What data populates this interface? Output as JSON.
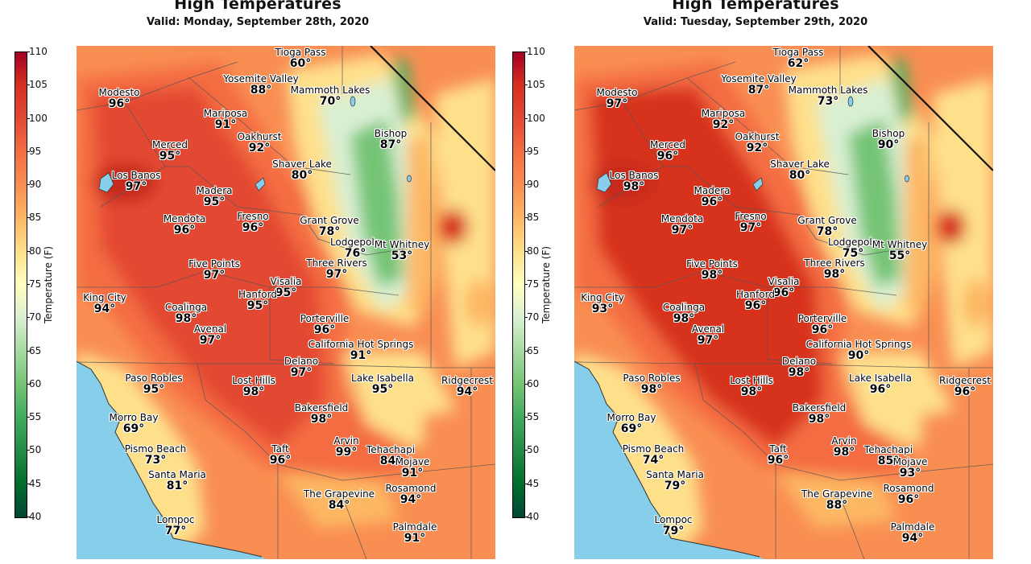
{
  "colorbar": {
    "label": "Temperature (F)",
    "ticks": [
      "110",
      "105",
      "100",
      "95",
      "90",
      "85",
      "80",
      "75",
      "70",
      "65",
      "60",
      "55",
      "50",
      "45",
      "40"
    ],
    "colors": [
      "#a50026",
      "#d7301f",
      "#e34a33",
      "#f46d43",
      "#f98e52",
      "#fdb863",
      "#fee08b",
      "#ffffbf",
      "#d9f0d3",
      "#a6dba0",
      "#74c476",
      "#41ab5d",
      "#238b45",
      "#006d2c",
      "#014636"
    ]
  },
  "panels": [
    {
      "title": "High Temperatures",
      "subtitle": "Valid: Monday, September 28th, 2020",
      "cities": [
        {
          "name": "Tioga Pass",
          "temp": "60°"
        },
        {
          "name": "Yosemite Valley",
          "temp": "88°"
        },
        {
          "name": "Mammoth Lakes",
          "temp": "70°"
        },
        {
          "name": "Modesto",
          "temp": "96°"
        },
        {
          "name": "Mariposa",
          "temp": "91°"
        },
        {
          "name": "Merced",
          "temp": "95°"
        },
        {
          "name": "Oakhurst",
          "temp": "92°"
        },
        {
          "name": "Bishop",
          "temp": "87°"
        },
        {
          "name": "Shaver Lake",
          "temp": "80°"
        },
        {
          "name": "Los Banos",
          "temp": "97°"
        },
        {
          "name": "Madera",
          "temp": "95°"
        },
        {
          "name": "Mendota",
          "temp": "96°"
        },
        {
          "name": "Fresno",
          "temp": "96°"
        },
        {
          "name": "Grant Grove",
          "temp": "78°"
        },
        {
          "name": "Lodgepole",
          "temp": "76°"
        },
        {
          "name": "Mt Whitney",
          "temp": "53°"
        },
        {
          "name": "Five Points",
          "temp": "97°"
        },
        {
          "name": "Three Rivers",
          "temp": "97°"
        },
        {
          "name": "Visalia",
          "temp": "95°"
        },
        {
          "name": "King City",
          "temp": "94°"
        },
        {
          "name": "Hanford",
          "temp": "95°"
        },
        {
          "name": "Coalinga",
          "temp": "98°"
        },
        {
          "name": "Porterville",
          "temp": "96°"
        },
        {
          "name": "Avenal",
          "temp": "97°"
        },
        {
          "name": "California Hot Springs",
          "temp": "91°"
        },
        {
          "name": "Delano",
          "temp": "97°"
        },
        {
          "name": "Paso Robles",
          "temp": "95°"
        },
        {
          "name": "Lost Hills",
          "temp": "98°"
        },
        {
          "name": "Lake Isabella",
          "temp": "95°"
        },
        {
          "name": "Ridgecrest",
          "temp": "94°"
        },
        {
          "name": "Bakersfield",
          "temp": "98°"
        },
        {
          "name": "Morro Bay",
          "temp": "69°"
        },
        {
          "name": "Pismo Beach",
          "temp": "73°"
        },
        {
          "name": "Taft",
          "temp": "96°"
        },
        {
          "name": "Arvin",
          "temp": "99°"
        },
        {
          "name": "Tehachapi",
          "temp": "84°"
        },
        {
          "name": "Mojave",
          "temp": "91°"
        },
        {
          "name": "Santa Maria",
          "temp": "81°"
        },
        {
          "name": "Rosamond",
          "temp": "94°"
        },
        {
          "name": "The Grapevine",
          "temp": "84°"
        },
        {
          "name": "Lompoc",
          "temp": "77°"
        },
        {
          "name": "Palmdale",
          "temp": "91°"
        }
      ]
    },
    {
      "title": "High Temperatures",
      "subtitle": "Valid: Tuesday, September 29th, 2020",
      "cities": [
        {
          "name": "Tioga Pass",
          "temp": "62°"
        },
        {
          "name": "Yosemite Valley",
          "temp": "87°"
        },
        {
          "name": "Mammoth Lakes",
          "temp": "73°"
        },
        {
          "name": "Modesto",
          "temp": "97°"
        },
        {
          "name": "Mariposa",
          "temp": "92°"
        },
        {
          "name": "Merced",
          "temp": "96°"
        },
        {
          "name": "Oakhurst",
          "temp": "92°"
        },
        {
          "name": "Bishop",
          "temp": "90°"
        },
        {
          "name": "Shaver Lake",
          "temp": "80°"
        },
        {
          "name": "Los Banos",
          "temp": "98°"
        },
        {
          "name": "Madera",
          "temp": "96°"
        },
        {
          "name": "Mendota",
          "temp": "97°"
        },
        {
          "name": "Fresno",
          "temp": "97°"
        },
        {
          "name": "Grant Grove",
          "temp": "78°"
        },
        {
          "name": "Lodgepole",
          "temp": "75°"
        },
        {
          "name": "Mt Whitney",
          "temp": "55°"
        },
        {
          "name": "Five Points",
          "temp": "98°"
        },
        {
          "name": "Three Rivers",
          "temp": "98°"
        },
        {
          "name": "Visalia",
          "temp": "96°"
        },
        {
          "name": "King City",
          "temp": "93°"
        },
        {
          "name": "Hanford",
          "temp": "96°"
        },
        {
          "name": "Coalinga",
          "temp": "98°"
        },
        {
          "name": "Porterville",
          "temp": "96°"
        },
        {
          "name": "Avenal",
          "temp": "97°"
        },
        {
          "name": "California Hot Springs",
          "temp": "90°"
        },
        {
          "name": "Delano",
          "temp": "98°"
        },
        {
          "name": "Paso Robles",
          "temp": "98°"
        },
        {
          "name": "Lost Hills",
          "temp": "98°"
        },
        {
          "name": "Lake Isabella",
          "temp": "96°"
        },
        {
          "name": "Ridgecrest",
          "temp": "96°"
        },
        {
          "name": "Bakersfield",
          "temp": "98°"
        },
        {
          "name": "Morro Bay",
          "temp": "69°"
        },
        {
          "name": "Pismo Beach",
          "temp": "74°"
        },
        {
          "name": "Taft",
          "temp": "96°"
        },
        {
          "name": "Arvin",
          "temp": "98°"
        },
        {
          "name": "Tehachapi",
          "temp": "85°"
        },
        {
          "name": "Mojave",
          "temp": "93°"
        },
        {
          "name": "Santa Maria",
          "temp": "79°"
        },
        {
          "name": "Rosamond",
          "temp": "96°"
        },
        {
          "name": "The Grapevine",
          "temp": "88°"
        },
        {
          "name": "Lompoc",
          "temp": "79°"
        },
        {
          "name": "Palmdale",
          "temp": "94°"
        }
      ]
    }
  ]
}
